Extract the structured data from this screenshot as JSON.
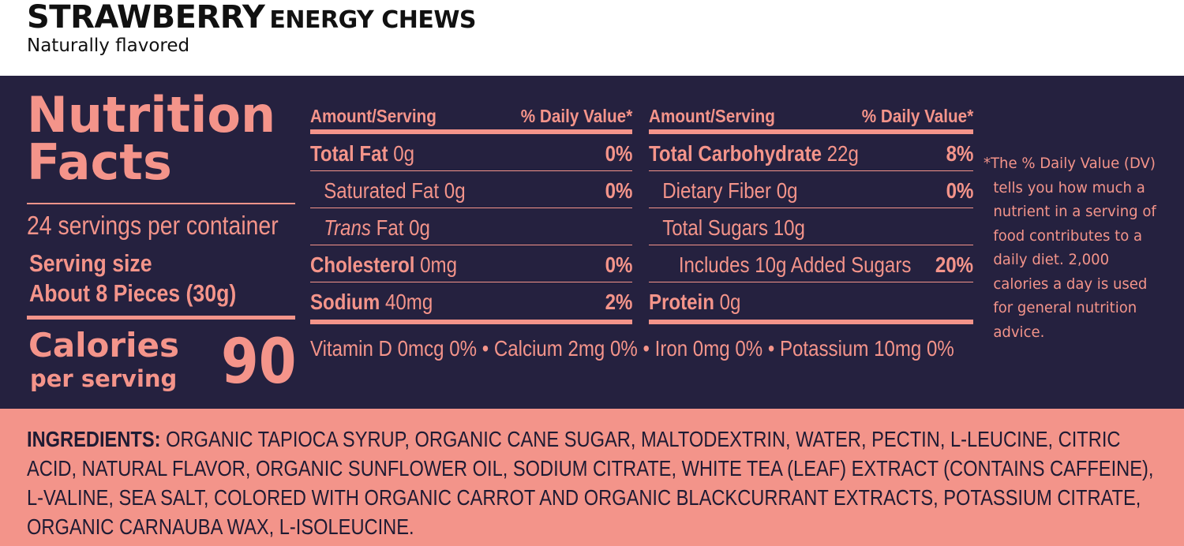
{
  "header": {
    "product_name": "STRAWBERRY",
    "product_type": "ENERGY CHEWS",
    "flavor_note": "Naturally flavored"
  },
  "nutrition": {
    "title_line1": "Nutrition",
    "title_line2": "Facts",
    "servings_per_container": "24 servings per container",
    "serving_size_label": "Serving size",
    "serving_size_value": "About 8 Pieces (30g)",
    "calories_label": "Calories",
    "calories_sub": "per serving",
    "calories_value": "90",
    "left_column": {
      "header_left": "Amount/Serving",
      "header_right": "% Daily Value*",
      "rows": [
        {
          "name": "Total Fat",
          "amount": "0g",
          "dv": "0%"
        },
        {
          "name": "Saturated Fat",
          "amount": "0g",
          "dv": "0%"
        },
        {
          "name_italic": "Trans",
          "name": "Fat",
          "amount": "0g",
          "dv": ""
        },
        {
          "name": "Cholesterol",
          "amount": "0mg",
          "dv": "0%"
        },
        {
          "name": "Sodium",
          "amount": "40mg",
          "dv": "2%"
        }
      ]
    },
    "right_column": {
      "header_left": "Amount/Serving",
      "header_right": "% Daily Value*",
      "rows": [
        {
          "name": "Total Carbohydrate",
          "amount": "22g",
          "dv": "8%"
        },
        {
          "name": "Dietary Fiber 0g",
          "amount": "",
          "dv": "0%"
        },
        {
          "name": "Total Sugars 10g",
          "amount": "",
          "dv": ""
        },
        {
          "name": "Includes 10g Added Sugars",
          "amount": "",
          "dv": "20%"
        },
        {
          "name": "Protein",
          "amount": "0g",
          "dv": ""
        }
      ]
    },
    "vitamins_line": "Vitamin D 0mcg 0% • Calcium 2mg 0% • Iron 0mg 0% • Potassium 10mg 0%",
    "dv_footnote": "*The % Daily Value (DV) tells you how much a nutrient in a serving of food contributes to a daily diet. 2,000 calories a day is used for general nutrition advice."
  },
  "ingredients": {
    "label": "INGREDIENTS:",
    "text": "ORGANIC TAPIOCA SYRUP, ORGANIC CANE SUGAR, MALTODEXTRIN, WATER, PECTIN, L-LEUCINE, CITRIC ACID, NATURAL FLAVOR, ORGANIC SUNFLOWER OIL, SODIUM CITRATE, WHITE TEA (LEAF) EXTRACT (CONTAINS CAFFEINE), L-VALINE, SEA SALT, COLORED WITH ORGANIC CARROT AND ORGANIC BLACKCURRANT EXTRACTS, POTASSIUM CITRATE, ORGANIC CARNAUBA WAX, L-ISOLEUCINE."
  },
  "colors": {
    "panel_bg": "#25213f",
    "accent": "#f4948a",
    "ingredients_bg": "#f3948a",
    "text_dark": "#111111"
  }
}
